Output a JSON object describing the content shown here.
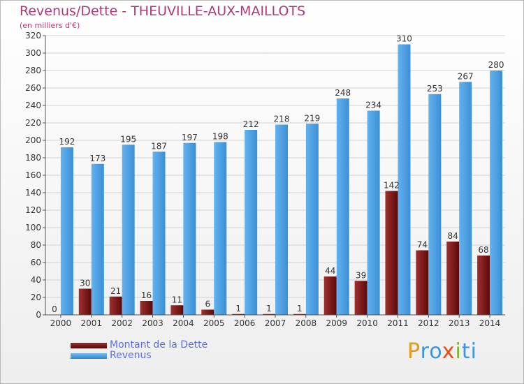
{
  "chart_data": {
    "type": "bar",
    "title": "Revenus/Dette - THEUVILLE-AUX-MAILLOTS",
    "subtitle": "(en milliers d'€)",
    "categories": [
      "2000",
      "2001",
      "2002",
      "2003",
      "2004",
      "2005",
      "2006",
      "2007",
      "2008",
      "2009",
      "2010",
      "2011",
      "2012",
      "2013",
      "2014"
    ],
    "series": [
      {
        "name": "Montant de la Dette",
        "color": "#6e0d0d",
        "values": [
          0,
          30,
          21,
          16,
          11,
          6,
          1,
          1,
          1,
          44,
          39,
          142,
          74,
          84,
          68
        ]
      },
      {
        "name": "Revenus",
        "color": "#3d95dc",
        "values": [
          192,
          173,
          195,
          187,
          197,
          198,
          212,
          218,
          219,
          248,
          234,
          310,
          253,
          267,
          280
        ]
      }
    ],
    "yticks": [
      0,
      20,
      40,
      60,
      80,
      100,
      120,
      140,
      160,
      180,
      200,
      220,
      240,
      260,
      280,
      300,
      320
    ],
    "ylim": [
      0,
      320
    ],
    "grid": true,
    "legend_position": "bottom-left"
  },
  "brand": {
    "letters": [
      "P",
      "r",
      "o",
      "x",
      "i",
      "t",
      "i"
    ],
    "colors": [
      "#e59a20",
      "#3d95dc",
      "#3d95dc",
      "#e84a1a",
      "#7cb82f",
      "#3d95dc",
      "#3d95dc"
    ]
  }
}
